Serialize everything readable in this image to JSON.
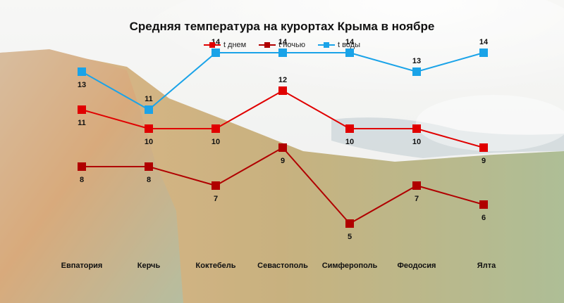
{
  "chart_data": {
    "type": "line",
    "title": "Средняя температура на курортах Крыма в ноябре",
    "categories": [
      "Евпатория",
      "Керчь",
      "Коктебель",
      "Севастополь",
      "Симферополь",
      "Феодосия",
      "Ялта"
    ],
    "series": [
      {
        "name": "t днем",
        "color": "#e00000",
        "values": [
          11,
          10,
          10,
          12,
          10,
          10,
          9
        ],
        "label_position": "below-except-max"
      },
      {
        "name": "t ночью",
        "color": "#b00000",
        "values": [
          8,
          8,
          7,
          9,
          5,
          7,
          6
        ],
        "label_position": "below"
      },
      {
        "name": "t воды",
        "color": "#1aa3e8",
        "values": [
          13,
          11,
          14,
          14,
          14,
          13,
          14
        ],
        "label_position": "above-except-first"
      }
    ],
    "legend_position": "top",
    "grid": false
  }
}
